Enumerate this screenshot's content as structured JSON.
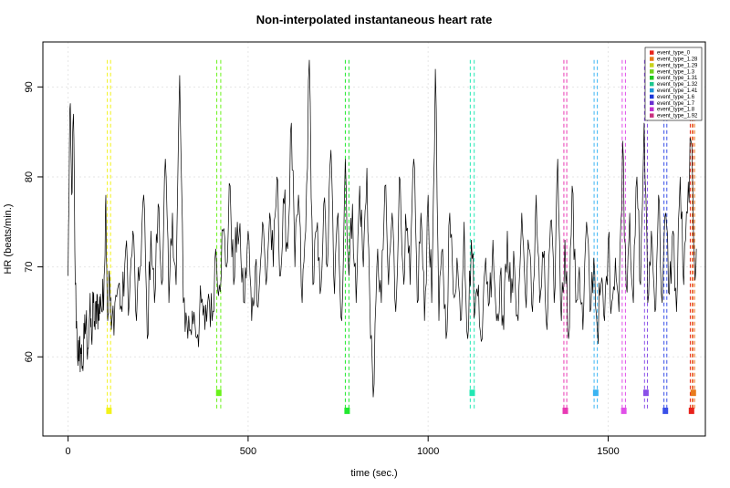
{
  "chart_data": {
    "type": "line",
    "title": "Non-interpolated instantaneous heart rate",
    "xlabel": "time (sec.)",
    "ylabel": "HR (beats/min.)",
    "xlim": [
      -70,
      1770
    ],
    "ylim": [
      51.2,
      95
    ],
    "xticks": [
      0,
      500,
      1000,
      1500
    ],
    "yticks": [
      60,
      70,
      80,
      90
    ],
    "grid": true,
    "legend_position": "top-right",
    "series_color": "#000000",
    "hr_anchors": [
      [
        0,
        69
      ],
      [
        5,
        87.6
      ],
      [
        10,
        78
      ],
      [
        15,
        87
      ],
      [
        20,
        68
      ],
      [
        25,
        62
      ],
      [
        30,
        59.5
      ],
      [
        35,
        61
      ],
      [
        40,
        59
      ],
      [
        45,
        62
      ],
      [
        50,
        64
      ],
      [
        55,
        61
      ],
      [
        60,
        65
      ],
      [
        65,
        62
      ],
      [
        70,
        66
      ],
      [
        75,
        63
      ],
      [
        80,
        67
      ],
      [
        85,
        64
      ],
      [
        90,
        67
      ],
      [
        95,
        65
      ],
      [
        100,
        69
      ],
      [
        105,
        78
      ],
      [
        110,
        64
      ],
      [
        115,
        69
      ],
      [
        120,
        63
      ],
      [
        130,
        66
      ],
      [
        140,
        68
      ],
      [
        150,
        65
      ],
      [
        160,
        72
      ],
      [
        170,
        66
      ],
      [
        180,
        74
      ],
      [
        190,
        64
      ],
      [
        200,
        70
      ],
      [
        210,
        78
      ],
      [
        220,
        62
      ],
      [
        230,
        74
      ],
      [
        240,
        66
      ],
      [
        250,
        77
      ],
      [
        260,
        68
      ],
      [
        270,
        82
      ],
      [
        280,
        66
      ],
      [
        290,
        76
      ],
      [
        300,
        68
      ],
      [
        310,
        91.3
      ],
      [
        320,
        66
      ],
      [
        330,
        64
      ],
      [
        340,
        63
      ],
      [
        350,
        65
      ],
      [
        360,
        62.5
      ],
      [
        370,
        66
      ],
      [
        380,
        63
      ],
      [
        390,
        67
      ],
      [
        400,
        64
      ],
      [
        410,
        72
      ],
      [
        420,
        68
      ],
      [
        430,
        74
      ],
      [
        440,
        70
      ],
      [
        450,
        79
      ],
      [
        460,
        68
      ],
      [
        470,
        75
      ],
      [
        480,
        71
      ],
      [
        490,
        66
      ],
      [
        500,
        74
      ],
      [
        510,
        64
      ],
      [
        520,
        70
      ],
      [
        530,
        67
      ],
      [
        540,
        75
      ],
      [
        550,
        68
      ],
      [
        560,
        76
      ],
      [
        570,
        70
      ],
      [
        580,
        80
      ],
      [
        590,
        69
      ],
      [
        600,
        77
      ],
      [
        610,
        72
      ],
      [
        620,
        86
      ],
      [
        630,
        70
      ],
      [
        640,
        78
      ],
      [
        650,
        66
      ],
      [
        660,
        74
      ],
      [
        670,
        93
      ],
      [
        680,
        68
      ],
      [
        690,
        74
      ],
      [
        700,
        67
      ],
      [
        710,
        77
      ],
      [
        720,
        70
      ],
      [
        730,
        83
      ],
      [
        740,
        67
      ],
      [
        750,
        76
      ],
      [
        760,
        64
      ],
      [
        770,
        82
      ],
      [
        780,
        69
      ],
      [
        790,
        77
      ],
      [
        800,
        66
      ],
      [
        810,
        79
      ],
      [
        820,
        70
      ],
      [
        830,
        81
      ],
      [
        840,
        62
      ],
      [
        850,
        57
      ],
      [
        860,
        72
      ],
      [
        870,
        66
      ],
      [
        880,
        79
      ],
      [
        890,
        68
      ],
      [
        900,
        76
      ],
      [
        910,
        65
      ],
      [
        920,
        80
      ],
      [
        930,
        70
      ],
      [
        940,
        74
      ],
      [
        950,
        68
      ],
      [
        960,
        82
      ],
      [
        970,
        66
      ],
      [
        980,
        76
      ],
      [
        990,
        64
      ],
      [
        1000,
        78
      ],
      [
        1010,
        66
      ],
      [
        1020,
        92
      ],
      [
        1030,
        64
      ],
      [
        1040,
        72
      ],
      [
        1050,
        62
      ],
      [
        1060,
        76
      ],
      [
        1070,
        67
      ],
      [
        1080,
        71
      ],
      [
        1090,
        64
      ],
      [
        1100,
        75
      ],
      [
        1110,
        62
      ],
      [
        1120,
        73
      ],
      [
        1130,
        65
      ],
      [
        1140,
        68
      ],
      [
        1150,
        62
      ],
      [
        1160,
        71
      ],
      [
        1170,
        66
      ],
      [
        1180,
        73
      ],
      [
        1190,
        64
      ],
      [
        1200,
        69
      ],
      [
        1210,
        63
      ],
      [
        1220,
        74
      ],
      [
        1230,
        66
      ],
      [
        1240,
        70
      ],
      [
        1250,
        64
      ],
      [
        1260,
        76
      ],
      [
        1270,
        67
      ],
      [
        1280,
        72
      ],
      [
        1290,
        65
      ],
      [
        1300,
        78
      ],
      [
        1310,
        66
      ],
      [
        1320,
        71
      ],
      [
        1330,
        63
      ],
      [
        1340,
        75
      ],
      [
        1350,
        66
      ],
      [
        1360,
        82
      ],
      [
        1370,
        64
      ],
      [
        1380,
        73
      ],
      [
        1390,
        62
      ],
      [
        1400,
        79
      ],
      [
        1410,
        66
      ],
      [
        1420,
        70
      ],
      [
        1430,
        63
      ],
      [
        1440,
        75
      ],
      [
        1450,
        65
      ],
      [
        1460,
        71
      ],
      [
        1470,
        63
      ],
      [
        1480,
        68
      ],
      [
        1490,
        64
      ],
      [
        1500,
        73
      ],
      [
        1510,
        66
      ],
      [
        1520,
        71
      ],
      [
        1530,
        65
      ],
      [
        1540,
        84
      ],
      [
        1550,
        68
      ],
      [
        1560,
        76
      ],
      [
        1570,
        66
      ],
      [
        1580,
        80
      ],
      [
        1590,
        68
      ],
      [
        1600,
        86
      ],
      [
        1610,
        66
      ],
      [
        1620,
        74
      ],
      [
        1630,
        65
      ],
      [
        1640,
        78
      ],
      [
        1650,
        66
      ],
      [
        1660,
        76
      ],
      [
        1670,
        67
      ],
      [
        1680,
        74
      ],
      [
        1690,
        65
      ],
      [
        1700,
        80
      ],
      [
        1710,
        68
      ],
      [
        1720,
        76
      ],
      [
        1730,
        84
      ],
      [
        1740,
        70
      ],
      [
        1745,
        72
      ]
    ],
    "legend": [
      {
        "name": "event_type_0",
        "color": "#e8231b"
      },
      {
        "name": "event_type_1.28",
        "color": "#e87a1b"
      },
      {
        "name": "event_type_1.29",
        "color": "#c8d21c"
      },
      {
        "name": "event_type_1.3",
        "color": "#6fd21c"
      },
      {
        "name": "event_type_1.31",
        "color": "#20c81e"
      },
      {
        "name": "event_type_1.32",
        "color": "#1ec88f"
      },
      {
        "name": "event_type_1.41",
        "color": "#1c95d8"
      },
      {
        "name": "event_type_1.6",
        "color": "#1c37d8"
      },
      {
        "name": "event_type_1.7",
        "color": "#6a2fd0"
      },
      {
        "name": "event_type_1.8",
        "color": "#c02fd0"
      },
      {
        "name": "event_type_1.92",
        "color": "#c82f7e"
      }
    ],
    "events": [
      {
        "x": 109,
        "x2": 118,
        "color": "#f2f21a",
        "marker_y": 54
      },
      {
        "x": 413,
        "x2": 424,
        "color": "#6af21a",
        "marker_y": 56
      },
      {
        "x": 770,
        "x2": 780,
        "color": "#22e830",
        "marker_y": 54
      },
      {
        "x": 1117,
        "x2": 1128,
        "color": "#22e8b4",
        "marker_y": 56
      },
      {
        "x": 1377,
        "x2": 1385,
        "color": "#e83ab4",
        "marker_y": 54
      },
      {
        "x": 1461,
        "x2": 1470,
        "color": "#3ab4f2",
        "marker_y": 56
      },
      {
        "x": 1539,
        "x2": 1548,
        "color": "#e050e8",
        "marker_y": 54
      },
      {
        "x": 1601,
        "x2": 1609,
        "color": "#8a50e8",
        "marker_y": 56
      },
      {
        "x": 1655,
        "x2": 1663,
        "color": "#3a50e8",
        "marker_y": 54
      },
      {
        "x": 1728,
        "x2": 1735,
        "color": "#e8231b",
        "marker_y": 54
      },
      {
        "x": 1733,
        "x2": 1740,
        "color": "#e87a1b",
        "marker_y": 56
      }
    ]
  }
}
